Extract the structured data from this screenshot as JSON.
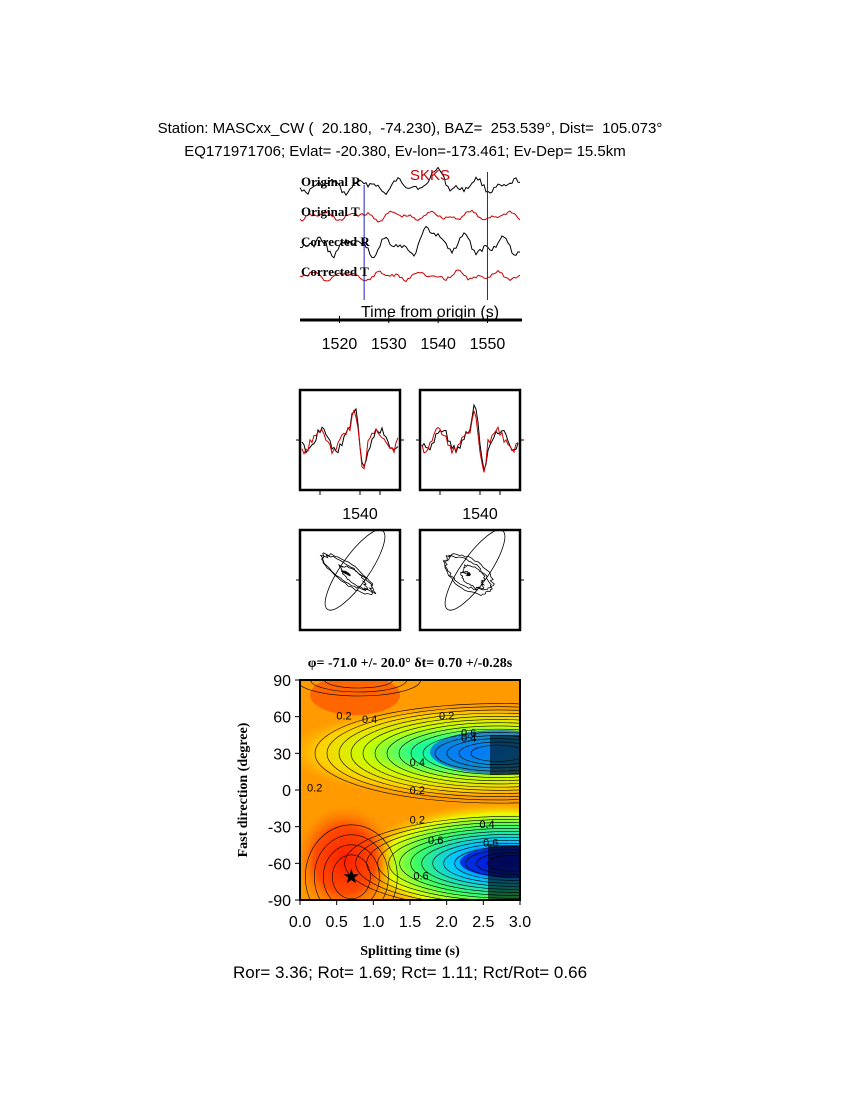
{
  "header": {
    "line1": "Station: MASCxx_CW (  20.180,  -74.230), BAZ=  253.539°, Dist=  105.073°",
    "line2": "EQ171971706; Evlat= -20.380, Ev-lon=-173.461; Ev-Dep= 15.5km"
  },
  "colors": {
    "trace_r": "#000000",
    "trace_t": "#cc0000",
    "marker": "#2020c0",
    "phase_label": "#cc0000"
  },
  "chart_data": [
    {
      "type": "line",
      "title": "",
      "phase_label": "SKKS",
      "xlabel": "Time from origin (s)",
      "xticks": [
        1520,
        1530,
        1540,
        1550
      ],
      "xlim": [
        1512,
        1557
      ],
      "window_markers": [
        1525,
        1550
      ],
      "series": [
        {
          "name": "Original R"
        },
        {
          "name": "Original T"
        },
        {
          "name": "Corrected R"
        },
        {
          "name": "Corrected T"
        }
      ]
    },
    {
      "type": "line",
      "panels": [
        "uncorrected-overlay",
        "corrected-overlay"
      ],
      "xticks": [
        1540
      ]
    },
    {
      "type": "scatter",
      "panels": [
        "uncorrected-particle-motion",
        "corrected-particle-motion"
      ]
    },
    {
      "type": "heatmap",
      "title_phi": "φ= -71.0 +/- 20.0°",
      "title_dt": "δt= 0.70 +/-0.28s",
      "best_phi": -71.0,
      "best_dt": 0.7,
      "xlabel": "Splitting time (s)",
      "ylabel": "Fast direction (degree)",
      "xlim": [
        0.0,
        3.0
      ],
      "ylim": [
        -90,
        90
      ],
      "xticks": [
        "0.0",
        "0.5",
        "1.0",
        "1.5",
        "2.0",
        "2.5",
        "3.0"
      ],
      "yticks": [
        "90",
        "60",
        "30",
        "0",
        "-30",
        "-60",
        "-90"
      ],
      "contour_labels": [
        "0.2",
        "0.2",
        "0.2",
        "0.2",
        "0.2",
        "0.4",
        "0.4",
        "0.4",
        "0.4",
        "0.6",
        "0.6",
        "0.6",
        "0.6"
      ]
    }
  ],
  "footer": {
    "text": "Ror= 3.36; Rot= 1.69; Rct= 1.11; Rct/Rot= 0.66"
  }
}
